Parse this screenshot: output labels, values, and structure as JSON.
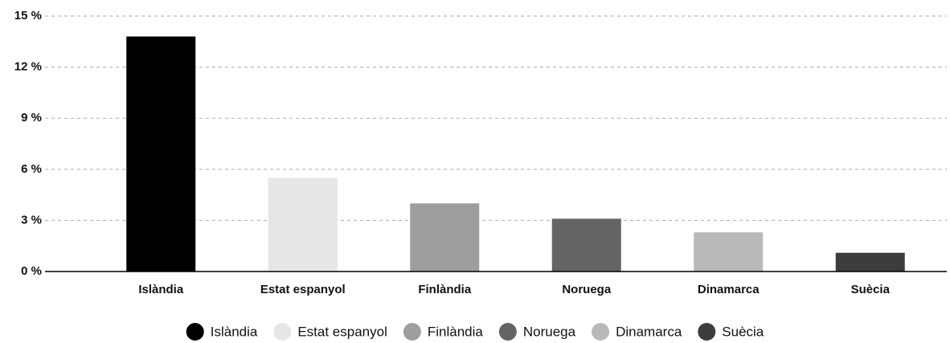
{
  "chart_data": {
    "type": "bar",
    "categories": [
      "Islàndia",
      "Estat espanyol",
      "Finlàndia",
      "Noruega",
      "Dinamarca",
      "Suècia"
    ],
    "values": [
      13.8,
      5.5,
      4.0,
      3.1,
      2.3,
      1.1
    ],
    "colors": [
      "#000000",
      "#e6e6e6",
      "#9e9e9e",
      "#646464",
      "#b9b9b9",
      "#3c3c3c"
    ],
    "ylim": [
      0,
      15
    ],
    "yticks": [
      {
        "value": 0,
        "label": "0 %"
      },
      {
        "value": 3,
        "label": "3 %"
      },
      {
        "value": 6,
        "label": "6 %"
      },
      {
        "value": 9,
        "label": "9 %"
      },
      {
        "value": 12,
        "label": "12 %"
      },
      {
        "value": 15,
        "label": "15 %"
      }
    ],
    "grid": true,
    "legend": "bottom"
  }
}
